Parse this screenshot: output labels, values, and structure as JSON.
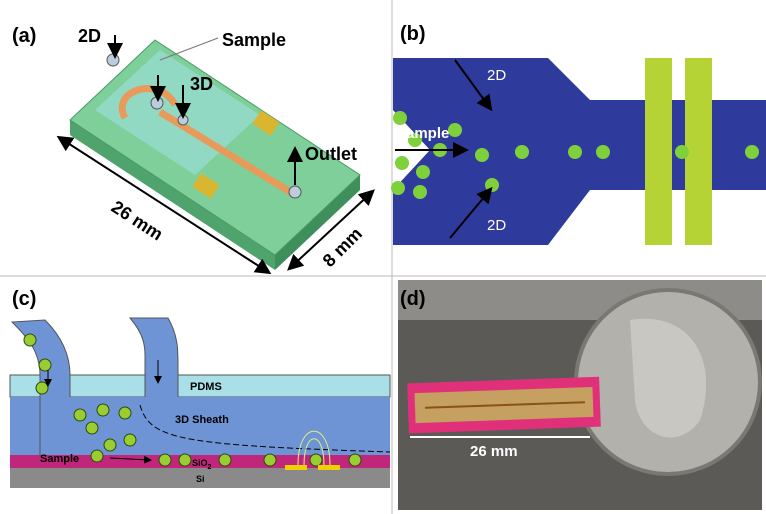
{
  "panel_a": {
    "label": "(a)",
    "inlet_2d": "2D",
    "sample": "Sample",
    "inlet_3d": "3D",
    "outlet": "Outlet",
    "length": "26 mm",
    "width": "8 mm"
  },
  "panel_b": {
    "label": "(b)",
    "sample": "Sample",
    "sheath_top": "2D",
    "sheath_bottom": "2D"
  },
  "panel_c": {
    "label": "(c)",
    "pdms": "PDMS",
    "sheath": "3D Sheath",
    "sample": "Sample",
    "oxide": {
      "base": "SiO",
      "sub": "2"
    },
    "substrate": "Si"
  },
  "panel_d": {
    "label": "(d)",
    "scale": "26 mm"
  }
}
